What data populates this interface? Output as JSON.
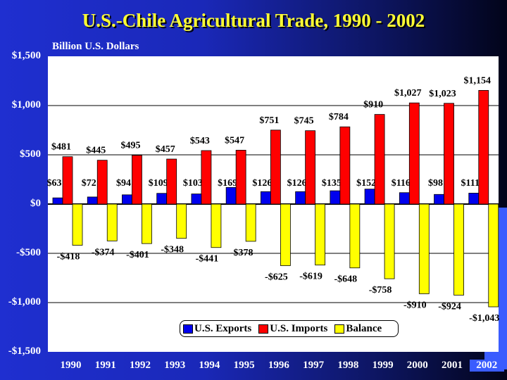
{
  "chart_data": {
    "type": "bar",
    "title": "U.S.-Chile Agricultural Trade, 1990 - 2002",
    "ylabel": "Billion U.S. Dollars",
    "categories": [
      "1990",
      "1991",
      "1992",
      "1993",
      "1994",
      "1995",
      "1996",
      "1997",
      "1998",
      "1999",
      "2000",
      "2001",
      "2002"
    ],
    "highlighted_category": "2002",
    "ylim": [
      -1500,
      1500
    ],
    "yticks": [
      1500,
      1000,
      500,
      0,
      -500,
      -1000,
      -1500
    ],
    "ytick_labels": [
      "$1,500",
      "$1,000",
      "$500",
      "$0",
      "-$500",
      "-$1,000",
      "-$1,500"
    ],
    "grid": true,
    "legend_position": "bottom-center",
    "series": [
      {
        "name": "U.S. Exports",
        "color": "#0000ee",
        "values": [
          63,
          72,
          94,
          109,
          103,
          169,
          126,
          126,
          135,
          152,
          116,
          98,
          111
        ],
        "labels": [
          "$63",
          "$72",
          "$94",
          "$109",
          "$103",
          "$169",
          "$126",
          "$126",
          "$135",
          "$152",
          "$116",
          "$98",
          "$111"
        ]
      },
      {
        "name": "U.S. Imports",
        "color": "#ff0000",
        "values": [
          481,
          445,
          495,
          457,
          543,
          547,
          751,
          745,
          784,
          910,
          1027,
          1023,
          1154
        ],
        "labels": [
          "$481",
          "$445",
          "$495",
          "$457",
          "$543",
          "$547",
          "$751",
          "$745",
          "$784",
          "$910",
          "$1,027",
          "$1,023",
          "$1,154"
        ]
      },
      {
        "name": "Balance",
        "color": "#ffff00",
        "values": [
          -418,
          -374,
          -401,
          -348,
          -441,
          -378,
          -625,
          -619,
          -648,
          -758,
          -910,
          -924,
          -1043
        ],
        "labels": [
          "-$418",
          "-$374",
          "-$401",
          "-$348",
          "-$441",
          "-$378",
          "-$625",
          "-$619",
          "-$648",
          "-$758",
          "-$910",
          "-$924",
          "-$1,043"
        ]
      }
    ]
  }
}
